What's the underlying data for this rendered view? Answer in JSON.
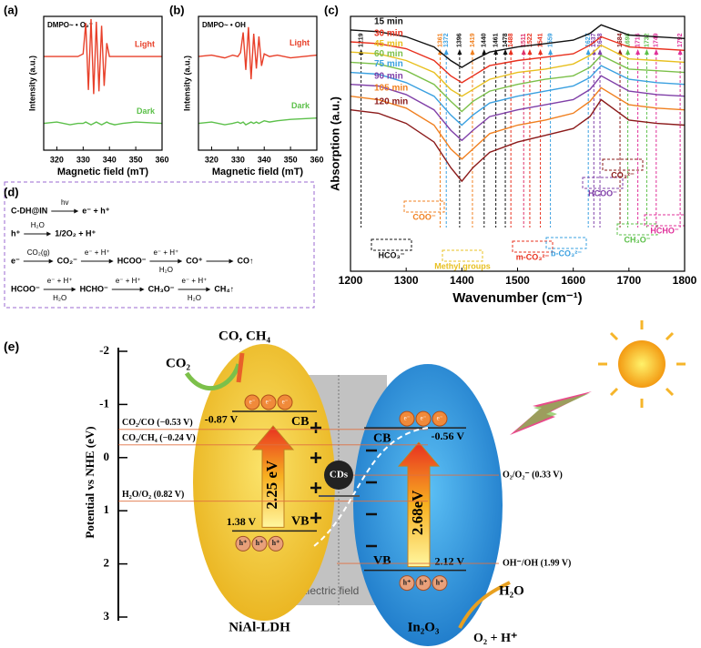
{
  "chart_data": [
    {
      "type": "line",
      "label": "(a)",
      "title": "DMPO~ • O₂⁻",
      "xlabel": "Magnetic field (mT)",
      "ylabel": "Intensity (a.u.)",
      "xlim": [
        315,
        360
      ],
      "xticks": [
        320,
        330,
        340,
        350,
        360
      ],
      "ylim": [
        0,
        10
      ],
      "legend": "right",
      "x": [
        315,
        320,
        325,
        328,
        330,
        331,
        332,
        333,
        334,
        335,
        336,
        337,
        338,
        339,
        340,
        342,
        345,
        350,
        360
      ],
      "series": [
        {
          "name": "Light",
          "color": "#e8402a",
          "values": [
            7,
            7,
            7,
            7,
            7.2,
            9.5,
            4.5,
            9.8,
            4.2,
            9.6,
            4.4,
            9.3,
            4.8,
            8,
            7,
            7,
            7,
            7,
            7
          ]
        },
        {
          "name": "Dark",
          "color": "#5cc04a",
          "values": [
            2,
            2.1,
            1.9,
            2,
            2,
            2.1,
            2,
            1.9,
            2,
            2.1,
            2,
            1.9,
            2,
            2.1,
            2,
            1.9,
            2,
            2.1,
            2
          ]
        }
      ]
    },
    {
      "type": "line",
      "label": "(b)",
      "title": "DMPO~ • OH",
      "xlabel": "Magnetic field (mT)",
      "ylabel": "Intensity (a.u.)",
      "xlim": [
        315,
        360
      ],
      "xticks": [
        320,
        330,
        340,
        350,
        360
      ],
      "ylim": [
        0,
        10
      ],
      "legend": "right",
      "x": [
        315,
        320,
        325,
        328,
        330,
        331,
        332,
        333,
        334,
        335,
        336,
        337,
        338,
        339,
        340,
        342,
        345,
        350,
        360
      ],
      "series": [
        {
          "name": "Light",
          "color": "#e8402a",
          "values": [
            7,
            7.1,
            6.9,
            7.1,
            7,
            7.3,
            8.8,
            6,
            9.2,
            5.3,
            8.7,
            6.1,
            8.5,
            6.3,
            7.2,
            7,
            7.1,
            6.9,
            7.1
          ]
        },
        {
          "name": "Dark",
          "color": "#5cc04a",
          "values": [
            2,
            2.1,
            1.9,
            2,
            2.1,
            2,
            2.1,
            1.9,
            2,
            2.1,
            2,
            2.1,
            2,
            2.1,
            2.2,
            2.1,
            2.2,
            2.3,
            2.4
          ]
        }
      ]
    },
    {
      "type": "line",
      "label": "(c)",
      "xlabel": "Wavenumber (cm⁻¹)",
      "ylabel": "Absorption (a.u.)",
      "xlim": [
        1200,
        1800
      ],
      "xticks": [
        1200,
        1300,
        1400,
        1500,
        1600,
        1700,
        1800
      ],
      "ylim": [
        -5,
        10
      ],
      "legend": "left",
      "x": [
        1200,
        1250,
        1300,
        1350,
        1380,
        1400,
        1420,
        1450,
        1500,
        1550,
        1600,
        1630,
        1650,
        1700,
        1750,
        1800
      ],
      "series": [
        {
          "name": "15 min",
          "color": "#111111",
          "values": [
            9.2,
            9.1,
            8.8,
            8.2,
            7.4,
            7.0,
            7.4,
            7.9,
            8.2,
            8.4,
            8.6,
            9.0,
            9.5,
            8.9,
            8.8,
            8.7
          ]
        },
        {
          "name": "30 min",
          "color": "#e8301e",
          "values": [
            8.5,
            8.4,
            8.1,
            7.4,
            6.5,
            6.1,
            6.5,
            7.1,
            7.4,
            7.6,
            7.8,
            8.3,
            8.8,
            8.2,
            8.1,
            8.0
          ]
        },
        {
          "name": "45 min",
          "color": "#e8c020",
          "values": [
            7.9,
            7.8,
            7.4,
            6.7,
            5.7,
            5.3,
            5.7,
            6.3,
            6.7,
            6.9,
            7.2,
            7.7,
            8.3,
            7.5,
            7.4,
            7.3
          ]
        },
        {
          "name": "60 min",
          "color": "#7cc04a",
          "values": [
            7.3,
            7.2,
            6.8,
            6.0,
            5.0,
            4.4,
            5.0,
            5.6,
            6.0,
            6.3,
            6.5,
            7.0,
            7.7,
            6.9,
            6.8,
            6.7
          ]
        },
        {
          "name": "75 min",
          "color": "#3aa0e0",
          "values": [
            6.7,
            6.6,
            6.1,
            5.3,
            4.2,
            3.6,
            4.2,
            4.9,
            5.3,
            5.6,
            5.9,
            6.4,
            7.1,
            6.3,
            6.1,
            6.0
          ]
        },
        {
          "name": "90 min",
          "color": "#8040a8",
          "values": [
            6.0,
            5.9,
            5.4,
            4.5,
            3.3,
            2.7,
            3.3,
            4.1,
            4.5,
            4.8,
            5.1,
            5.7,
            6.5,
            5.6,
            5.4,
            5.3
          ]
        },
        {
          "name": "105 min",
          "color": "#f08020",
          "values": [
            5.3,
            5.1,
            4.6,
            3.6,
            2.2,
            1.6,
            2.2,
            3.1,
            3.6,
            3.9,
            4.3,
            5.0,
            5.8,
            4.8,
            4.6,
            4.5
          ]
        },
        {
          "name": "120 min",
          "color": "#8b1a1a",
          "values": [
            4.5,
            4.3,
            3.7,
            2.6,
            1.1,
            0.3,
            1.1,
            2.0,
            2.6,
            3.0,
            3.4,
            4.1,
            5.1,
            3.9,
            3.7,
            3.6
          ]
        }
      ],
      "peaks": [
        {
          "value": 1219,
          "color": "#111111"
        },
        {
          "value": 1361,
          "color": "#f08020"
        },
        {
          "value": 1372,
          "color": "#3aa0e0"
        },
        {
          "value": 1396,
          "color": "#111111"
        },
        {
          "value": 1419,
          "color": "#f08020"
        },
        {
          "value": 1440,
          "color": "#111111"
        },
        {
          "value": 1461,
          "color": "#111111"
        },
        {
          "value": 1478,
          "color": "#111111"
        },
        {
          "value": 1488,
          "color": "#e8301e"
        },
        {
          "value": 1511,
          "color": "#e0306a"
        },
        {
          "value": 1522,
          "color": "#e8301e"
        },
        {
          "value": 1541,
          "color": "#e8301e"
        },
        {
          "value": 1559,
          "color": "#3aa0e0"
        },
        {
          "value": 1627,
          "color": "#3aa0e0"
        },
        {
          "value": 1637,
          "color": "#8040a8"
        },
        {
          "value": 1648,
          "color": "#8040a8"
        },
        {
          "value": 1684,
          "color": "#8b1a1a"
        },
        {
          "value": 1698,
          "color": "#5cc04a"
        },
        {
          "value": 1716,
          "color": "#e0309a"
        },
        {
          "value": 1732,
          "color": "#5cc04a"
        },
        {
          "value": 1749,
          "color": "#e0309a"
        },
        {
          "value": 1792,
          "color": "#e0309a"
        }
      ],
      "groups": [
        {
          "label": "HCO₃⁻",
          "color": "#111111"
        },
        {
          "label": "COO⁻",
          "color": "#f08020"
        },
        {
          "label": "Methyl groups",
          "color": "#e8c020"
        },
        {
          "label": "m-CO₃²⁻",
          "color": "#e8301e"
        },
        {
          "label": "b-CO₃²⁻",
          "color": "#3aa0e0"
        },
        {
          "label": "HCOO⁻",
          "color": "#8040a8"
        },
        {
          "label": "CO₃²⁻",
          "color": "#8b1a1a"
        },
        {
          "label": "CH₃O⁻",
          "color": "#5cc04a"
        },
        {
          "label": "HCHO⁻",
          "color": "#e0309a"
        }
      ]
    },
    {
      "type": "band",
      "label": "(e)",
      "ylabel": "Potential vs NHE (eV)",
      "ylim": [
        3,
        -2
      ],
      "yticks": [
        -2,
        -1,
        0,
        1,
        2,
        3
      ],
      "semiconductors": [
        {
          "name": "NiAl-LDH",
          "cb": -0.87,
          "cb_label": "-0.87 V",
          "vb": 1.38,
          "vb_label": "1.38 V",
          "gap_label": "2.25 eV"
        },
        {
          "name": "In₂O₃",
          "cb": -0.56,
          "cb_label": "-0.56 V",
          "vb": 2.12,
          "vb_label": "2.12 V",
          "gap_label": "2.68eV"
        }
      ],
      "band_names": [
        "CB",
        "VB"
      ],
      "references": [
        {
          "label": "CO₂/CO (−0.53 V)",
          "value": -0.53
        },
        {
          "label": "CO₂/CH₄ (−0.24 V)",
          "value": -0.24
        },
        {
          "label": "H₂O/O₂ (0.82 V)",
          "value": 0.82
        },
        {
          "label": "O₂/O₂⁻ (0.33 V)",
          "value": 0.33
        },
        {
          "label": "OH⁻/OH (1.99 V)",
          "value": 1.99
        }
      ],
      "cocatalyst": "CDs",
      "field_label": "Electric field",
      "electron": "e⁻",
      "hole": "h⁺",
      "reactants": {
        "co2": "CO₂",
        "co_ch4": "CO, CH₄",
        "h2o": "H₂O",
        "o2": "O₂ + H⁺"
      }
    }
  ],
  "reactions": {
    "label": "(d)",
    "rows": [
      {
        "species": [
          "C-DH@IN",
          "e⁻ + h⁺"
        ],
        "arrows": [
          {
            "above": "hv"
          }
        ]
      },
      {
        "species": [
          "h⁺",
          "1/2O₂ + H⁺"
        ],
        "arrows": [
          {
            "above": "H₂O"
          }
        ]
      },
      {
        "species": [
          "e⁻",
          "CO₂⁻",
          "HCOO⁻",
          "CO⁺",
          "CO↑"
        ],
        "arrows": [
          {
            "above": "CO₂(g)"
          },
          {
            "above": "e⁻ + H⁺"
          },
          {
            "above": "e⁻ + H⁺",
            "below": "H₂O"
          },
          {}
        ]
      },
      {
        "species": [
          "HCOO⁻",
          "HCHO⁻",
          "CH₃O⁻",
          "CH₄↑"
        ],
        "arrows": [
          {
            "above": "e⁻ + H⁺",
            "below": "H₂O"
          },
          {
            "above": "e⁻ + H⁺"
          },
          {
            "above": "e⁻ + H⁺",
            "below": "H₂O"
          }
        ]
      }
    ]
  }
}
